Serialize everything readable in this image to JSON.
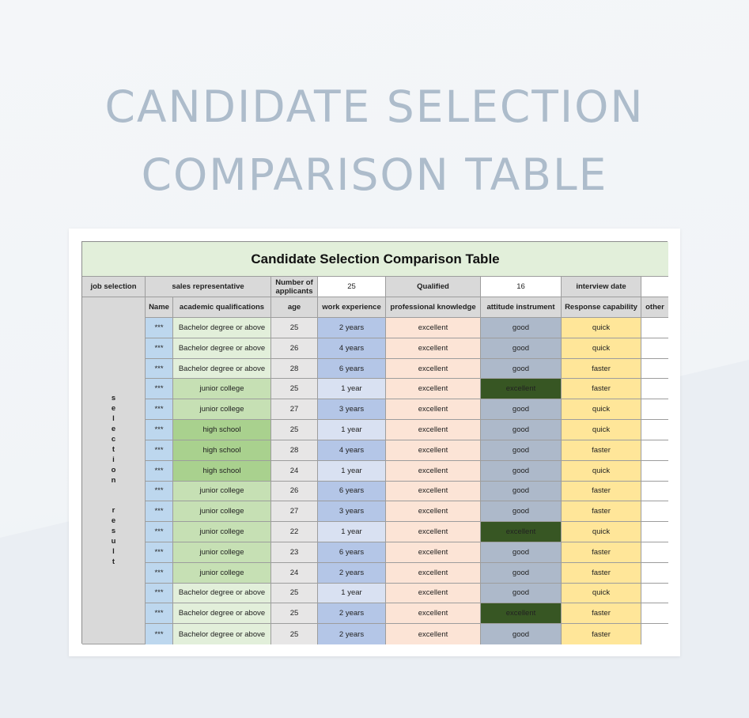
{
  "page_title_line1": "CANDIDATE SELECTION",
  "page_title_line2": "COMPARISON TABLE",
  "table_title": "Candidate Selection Comparison Table",
  "info_row": {
    "job_selection_label": "job selection",
    "job_value": "sales representative",
    "applicants_label": "Number of applicants",
    "applicants_value": "25",
    "qualified_label": "Qualified",
    "qualified_value": "16",
    "interview_label": "interview date",
    "interview_value": ""
  },
  "side_label_words": [
    "selection",
    "result"
  ],
  "columns": [
    "Name",
    "academic qualifications",
    "age",
    "work experience",
    "professional knowledge",
    "attitude instrument",
    "Response capability",
    "other"
  ],
  "colors": {
    "title_bg": "#e2efda",
    "header_gray": "#d9d9d9",
    "name_blue": "#bdd7ee",
    "qual_bachelor": "#e2efda",
    "qual_junior": "#c6e0b4",
    "qual_high": "#a9d18e",
    "work_dark": "#b4c6e7",
    "work_light": "#d9e1f2",
    "professional": "#fce4d6",
    "attitude": "#adb9ca",
    "attitude_excellent": "#375623",
    "response": "#ffe699"
  },
  "rows": [
    {
      "name": "***",
      "qual": "Bachelor degree or above",
      "age": "25",
      "work": "2 years",
      "prof": "excellent",
      "att": "good",
      "resp": "quick",
      "other": ""
    },
    {
      "name": "***",
      "qual": "Bachelor degree or above",
      "age": "26",
      "work": "4 years",
      "prof": "excellent",
      "att": "good",
      "resp": "quick",
      "other": ""
    },
    {
      "name": "***",
      "qual": "Bachelor degree or above",
      "age": "28",
      "work": "6 years",
      "prof": "excellent",
      "att": "good",
      "resp": "faster",
      "other": ""
    },
    {
      "name": "***",
      "qual": "junior college",
      "age": "25",
      "work": "1 year",
      "prof": "excellent",
      "att": "excellent",
      "resp": "faster",
      "other": ""
    },
    {
      "name": "***",
      "qual": "junior college",
      "age": "27",
      "work": "3 years",
      "prof": "excellent",
      "att": "good",
      "resp": "quick",
      "other": ""
    },
    {
      "name": "***",
      "qual": "high school",
      "age": "25",
      "work": "1 year",
      "prof": "excellent",
      "att": "good",
      "resp": "quick",
      "other": ""
    },
    {
      "name": "***",
      "qual": "high school",
      "age": "28",
      "work": "4 years",
      "prof": "excellent",
      "att": "good",
      "resp": "faster",
      "other": ""
    },
    {
      "name": "***",
      "qual": "high school",
      "age": "24",
      "work": "1 year",
      "prof": "excellent",
      "att": "good",
      "resp": "quick",
      "other": ""
    },
    {
      "name": "***",
      "qual": "junior college",
      "age": "26",
      "work": "6 years",
      "prof": "excellent",
      "att": "good",
      "resp": "faster",
      "other": ""
    },
    {
      "name": "***",
      "qual": "junior college",
      "age": "27",
      "work": "3 years",
      "prof": "excellent",
      "att": "good",
      "resp": "faster",
      "other": ""
    },
    {
      "name": "***",
      "qual": "junior college",
      "age": "22",
      "work": "1 year",
      "prof": "excellent",
      "att": "excellent",
      "resp": "quick",
      "other": ""
    },
    {
      "name": "***",
      "qual": "junior college",
      "age": "23",
      "work": "6 years",
      "prof": "excellent",
      "att": "good",
      "resp": "faster",
      "other": ""
    },
    {
      "name": "***",
      "qual": "junior college",
      "age": "24",
      "work": "2 years",
      "prof": "excellent",
      "att": "good",
      "resp": "faster",
      "other": ""
    },
    {
      "name": "***",
      "qual": "Bachelor degree or above",
      "age": "25",
      "work": "1 year",
      "prof": "excellent",
      "att": "good",
      "resp": "quick",
      "other": ""
    },
    {
      "name": "***",
      "qual": "Bachelor degree or above",
      "age": "25",
      "work": "2 years",
      "prof": "excellent",
      "att": "excellent",
      "resp": "faster",
      "other": ""
    },
    {
      "name": "***",
      "qual": "Bachelor degree or above",
      "age": "25",
      "work": "2 years",
      "prof": "excellent",
      "att": "good",
      "resp": "faster",
      "other": ""
    }
  ]
}
